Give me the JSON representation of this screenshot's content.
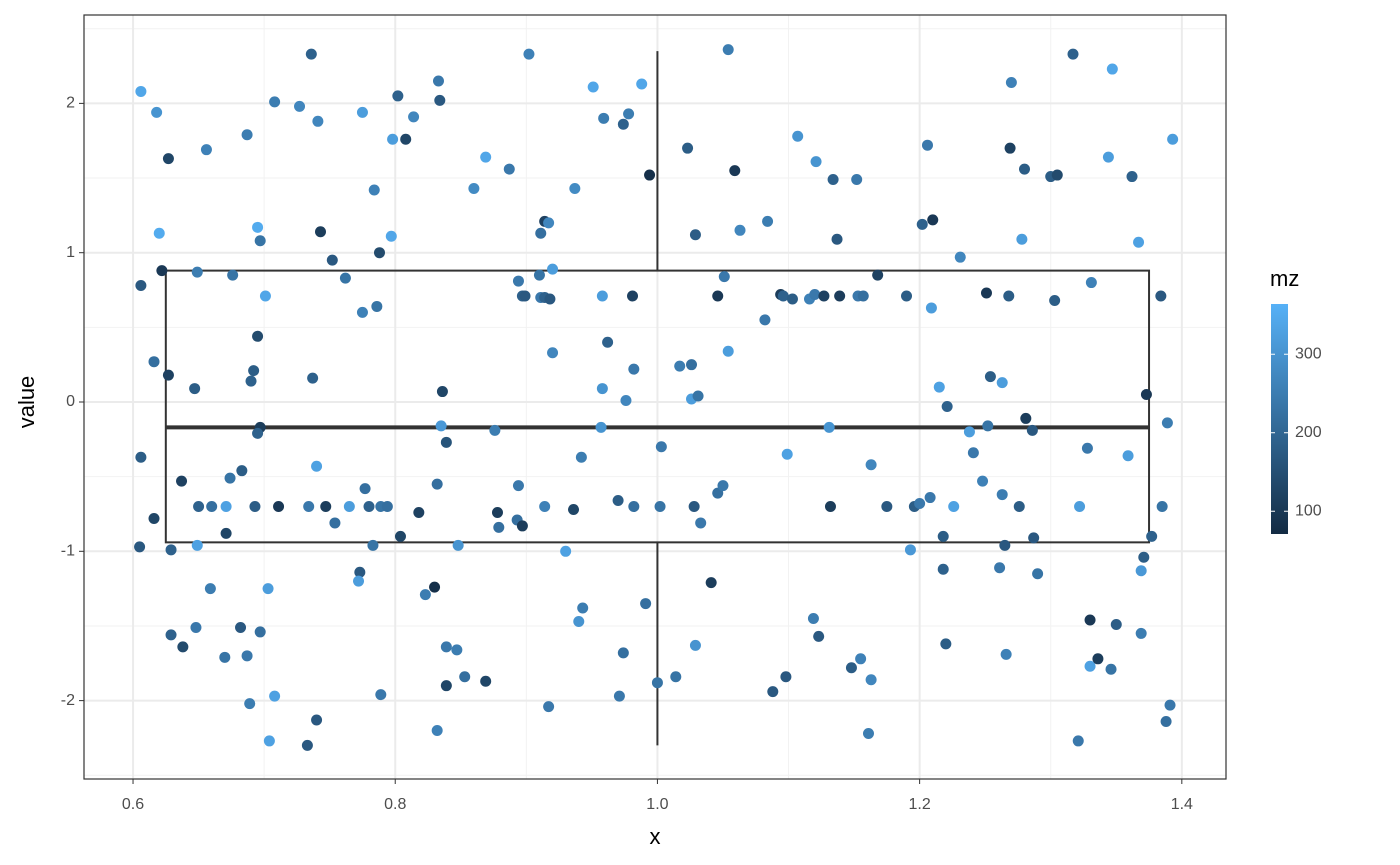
{
  "chart_data": {
    "type": "boxplot",
    "x_label": "x",
    "y_label": "value",
    "legend_title": "mz",
    "xlim": [
      0.5626,
      1.4337
    ],
    "ylim": [
      -2.525,
      2.592
    ],
    "xticks": [
      0.6,
      0.8,
      {
        "value": 1,
        "label": "1.0"
      },
      1.2,
      1.4
    ],
    "yticks": [
      -2,
      -1,
      0,
      1,
      2
    ],
    "grid": true,
    "box": {
      "x": 1,
      "box_width": 0.75,
      "whisker_low": -2.3,
      "q1": -0.94,
      "median": -0.17,
      "q3": 0.88,
      "whisker_high": 2.35,
      "color": "#333333"
    },
    "mz_lim": [
      71,
      364
    ],
    "mz_ticks": [
      100,
      200,
      300
    ],
    "color_low": "#132B43",
    "color_high": "#56B1F7",
    "points": {
      "x": [
        0.606,
        0.618,
        0.627,
        0.62,
        0.622,
        0.606,
        0.616,
        0.627,
        0.606,
        0.616,
        0.605,
        0.629,
        0.637,
        0.629,
        0.638,
        0.648,
        0.649,
        0.647,
        0.649,
        0.656,
        0.659,
        0.65,
        0.66,
        0.671,
        0.671,
        0.674,
        0.676,
        0.687,
        0.683,
        0.682,
        0.687,
        0.67,
        0.689,
        0.69,
        0.692,
        0.693,
        0.697,
        0.701,
        0.703,
        0.704,
        0.708,
        0.708,
        0.711,
        0.695,
        0.697,
        0.695,
        0.695,
        0.697,
        0.727,
        0.736,
        0.741,
        0.743,
        0.737,
        0.74,
        0.734,
        0.747,
        0.74,
        0.733,
        0.752,
        0.754,
        0.762,
        0.765,
        0.773,
        0.772,
        0.775,
        0.775,
        0.777,
        0.78,
        0.784,
        0.786,
        0.788,
        0.783,
        0.789,
        0.794,
        0.789,
        0.798,
        0.797,
        0.802,
        0.808,
        0.814,
        0.804,
        0.818,
        0.823,
        0.83,
        0.832,
        0.833,
        0.834,
        0.835,
        0.836,
        0.839,
        0.839,
        0.839,
        0.832,
        0.848,
        0.847,
        0.853,
        0.86,
        0.869,
        0.869,
        0.876,
        0.878,
        0.879,
        0.887,
        0.893,
        0.897,
        0.894,
        0.894,
        0.897,
        0.899,
        0.902,
        0.911,
        0.914,
        0.917,
        0.91,
        0.911,
        0.914,
        0.918,
        0.92,
        0.92,
        0.914,
        0.917,
        0.93,
        0.936,
        0.937,
        0.942,
        0.943,
        0.94,
        0.951,
        0.957,
        0.958,
        0.958,
        0.959,
        0.962,
        0.97,
        0.971,
        0.974,
        0.976,
        0.974,
        0.978,
        0.981,
        0.982,
        0.982,
        0.988,
        0.991,
        0.994,
        1.0,
        1.003,
        1.002,
        1.014,
        1.017,
        1.023,
        1.026,
        1.026,
        1.029,
        1.031,
        1.028,
        1.033,
        1.029,
        1.041,
        1.046,
        1.046,
        1.05,
        1.051,
        1.054,
        1.054,
        1.059,
        1.063,
        1.082,
        1.084,
        1.088,
        1.094,
        1.096,
        1.098,
        1.099,
        1.103,
        1.107,
        1.116,
        1.12,
        1.119,
        1.121,
        1.123,
        1.127,
        1.131,
        1.132,
        1.134,
        1.137,
        1.139,
        1.148,
        1.152,
        1.153,
        1.157,
        1.155,
        1.161,
        1.163,
        1.163,
        1.168,
        1.175,
        1.19,
        1.193,
        1.196,
        1.2,
        1.202,
        1.206,
        1.208,
        1.209,
        1.21,
        1.215,
        1.218,
        1.218,
        1.22,
        1.221,
        1.226,
        1.231,
        1.238,
        1.241,
        1.248,
        1.251,
        1.254,
        1.252,
        1.261,
        1.263,
        1.263,
        1.265,
        1.266,
        1.268,
        1.269,
        1.27,
        1.276,
        1.278,
        1.28,
        1.281,
        1.286,
        1.287,
        1.29,
        1.3,
        1.305,
        1.303,
        1.317,
        1.322,
        1.321,
        1.328,
        1.33,
        1.33,
        1.331,
        1.336,
        1.344,
        1.346,
        1.347,
        1.35,
        1.359,
        1.362,
        1.367,
        1.369,
        1.369,
        1.371,
        1.373,
        1.377,
        1.384,
        1.385,
        1.389,
        1.391,
        1.388,
        1.393
      ],
      "y": [
        2.08,
        1.94,
        1.63,
        1.13,
        0.88,
        0.78,
        0.27,
        0.18,
        -0.37,
        -0.78,
        -0.97,
        -0.99,
        -0.53,
        -1.56,
        -1.64,
        -1.51,
        -0.96,
        0.09,
        0.87,
        1.69,
        -1.25,
        -0.7,
        -0.7,
        -0.7,
        -0.88,
        -0.51,
        0.85,
        1.79,
        -0.46,
        -1.51,
        -1.7,
        -1.71,
        -2.02,
        0.14,
        0.21,
        -0.7,
        -0.17,
        0.71,
        -1.25,
        -2.27,
        2.01,
        -1.97,
        -0.7,
        1.17,
        1.08,
        0.44,
        -0.21,
        -1.54,
        1.98,
        2.33,
        1.88,
        1.14,
        0.16,
        -0.43,
        -0.7,
        -0.7,
        -2.13,
        -2.3,
        0.95,
        -0.81,
        0.83,
        -0.7,
        -1.14,
        -1.2,
        1.94,
        0.6,
        -0.58,
        -0.7,
        1.42,
        0.64,
        1.0,
        -0.96,
        -0.7,
        -0.7,
        -1.96,
        1.76,
        1.11,
        2.05,
        1.76,
        1.91,
        -0.9,
        -0.74,
        -1.29,
        -1.24,
        -0.55,
        2.15,
        2.02,
        -0.16,
        0.07,
        -0.27,
        -1.64,
        -1.9,
        -2.2,
        -0.96,
        -1.66,
        -1.84,
        1.43,
        1.64,
        -1.87,
        -0.19,
        -0.74,
        -0.84,
        1.56,
        -0.79,
        -0.83,
        -0.56,
        0.81,
        0.71,
        0.71,
        2.33,
        1.13,
        1.21,
        1.2,
        0.85,
        0.7,
        0.7,
        0.69,
        0.89,
        0.33,
        -0.7,
        -2.04,
        -1.0,
        -0.72,
        1.43,
        -0.37,
        -1.38,
        -1.47,
        2.11,
        -0.17,
        0.09,
        0.71,
        1.9,
        0.4,
        -0.66,
        -1.97,
        1.86,
        0.01,
        -1.68,
        1.93,
        0.71,
        0.22,
        -0.7,
        2.13,
        -1.35,
        1.52,
        -1.88,
        -0.3,
        -0.7,
        -1.84,
        0.24,
        1.7,
        0.02,
        0.25,
        1.12,
        0.04,
        -0.7,
        -0.81,
        -1.63,
        -1.21,
        -0.61,
        0.71,
        -0.56,
        0.84,
        0.34,
        2.36,
        1.55,
        1.15,
        0.55,
        1.21,
        -1.94,
        0.72,
        0.71,
        -1.84,
        -0.35,
        0.69,
        1.78,
        0.69,
        0.72,
        -1.45,
        1.61,
        -1.57,
        0.71,
        -0.17,
        -0.7,
        1.49,
        1.09,
        0.71,
        -1.78,
        1.49,
        0.71,
        0.71,
        -1.72,
        -2.22,
        -0.42,
        -1.86,
        0.85,
        -0.7,
        0.71,
        -0.99,
        -0.7,
        -0.68,
        1.19,
        1.72,
        -0.64,
        0.63,
        1.22,
        0.1,
        -0.9,
        -1.12,
        -1.62,
        -0.03,
        -0.7,
        0.97,
        -0.2,
        -0.34,
        -0.53,
        0.73,
        0.17,
        -0.16,
        -1.11,
        -0.62,
        0.13,
        -0.96,
        -1.69,
        0.71,
        1.7,
        2.14,
        -0.7,
        1.09,
        1.56,
        -0.11,
        -0.19,
        -0.91,
        -1.15,
        1.51,
        1.52,
        0.68,
        2.33,
        -0.7,
        -2.27,
        -0.31,
        -1.46,
        -1.77,
        0.8,
        -1.72,
        1.64,
        -1.79,
        2.23,
        -1.49,
        -0.36,
        1.51,
        1.07,
        -1.13,
        -1.55,
        -1.04,
        0.05,
        -0.9,
        0.71,
        -0.7,
        -0.14,
        -2.03,
        -2.14,
        1.76
      ],
      "mz": [
        340,
        300,
        130,
        350,
        100,
        170,
        220,
        120,
        180,
        130,
        170,
        190,
        120,
        190,
        140,
        240,
        330,
        180,
        250,
        260,
        250,
        190,
        220,
        330,
        130,
        230,
        230,
        250,
        180,
        170,
        240,
        230,
        250,
        190,
        180,
        180,
        110,
        340,
        320,
        330,
        250,
        330,
        100,
        350,
        230,
        140,
        190,
        220,
        270,
        190,
        270,
        110,
        190,
        330,
        240,
        110,
        170,
        170,
        170,
        220,
        230,
        320,
        170,
        320,
        320,
        260,
        220,
        190,
        260,
        230,
        140,
        230,
        230,
        220,
        240,
        320,
        340,
        190,
        130,
        270,
        130,
        120,
        250,
        80,
        220,
        240,
        170,
        310,
        130,
        160,
        240,
        130,
        260,
        300,
        250,
        220,
        280,
        340,
        130,
        250,
        110,
        220,
        240,
        220,
        110,
        240,
        240,
        190,
        170,
        260,
        220,
        120,
        270,
        230,
        240,
        190,
        170,
        320,
        270,
        260,
        240,
        330,
        130,
        280,
        250,
        250,
        300,
        340,
        300,
        300,
        320,
        250,
        190,
        180,
        240,
        190,
        270,
        220,
        250,
        120,
        240,
        220,
        340,
        220,
        80,
        230,
        240,
        230,
        230,
        250,
        180,
        320,
        220,
        180,
        230,
        170,
        240,
        300,
        110,
        220,
        100,
        240,
        240,
        320,
        250,
        100,
        270,
        240,
        250,
        170,
        110,
        190,
        170,
        330,
        180,
        300,
        260,
        240,
        250,
        300,
        170,
        120,
        300,
        110,
        190,
        170,
        110,
        180,
        240,
        240,
        220,
        260,
        250,
        270,
        270,
        120,
        170,
        180,
        310,
        180,
        240,
        190,
        240,
        240,
        320,
        100,
        330,
        180,
        190,
        180,
        190,
        330,
        270,
        320,
        240,
        260,
        100,
        180,
        230,
        240,
        250,
        320,
        170,
        260,
        180,
        120,
        260,
        180,
        320,
        180,
        110,
        170,
        170,
        230,
        180,
        140,
        180,
        190,
        320,
        240,
        240,
        100,
        330,
        260,
        110,
        320,
        230,
        340,
        180,
        320,
        190,
        330,
        310,
        250,
        180,
        100,
        190,
        170,
        230,
        250,
        240,
        220,
        320
      ]
    }
  }
}
